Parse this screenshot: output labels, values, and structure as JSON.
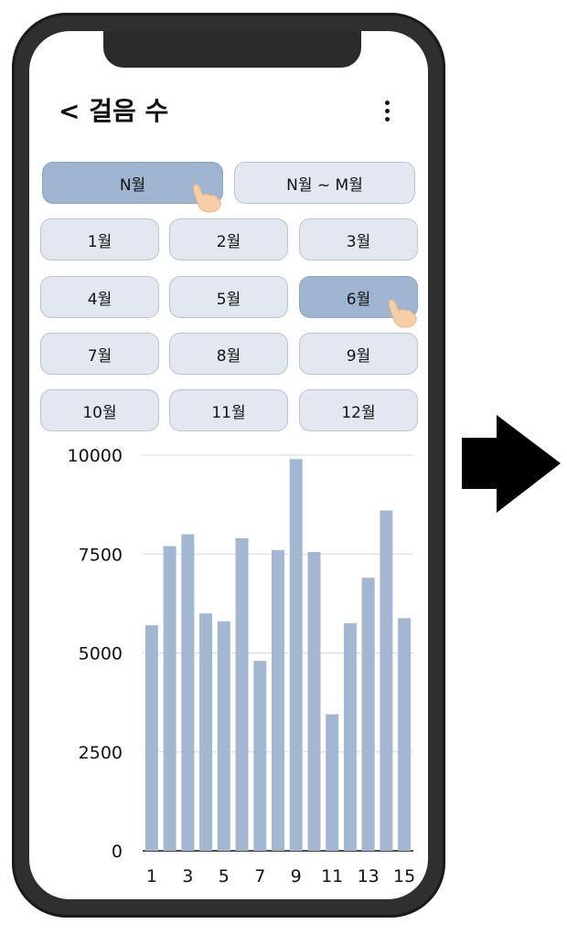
{
  "header": {
    "back_title": "< 걸음 수",
    "menu_icon": "more-vertical-icon"
  },
  "mode_tabs": [
    {
      "label": "N월",
      "selected": true
    },
    {
      "label": "N월 ~ M월",
      "selected": false
    }
  ],
  "months": [
    {
      "label": "1월",
      "selected": false
    },
    {
      "label": "2월",
      "selected": false
    },
    {
      "label": "3월",
      "selected": false
    },
    {
      "label": "4월",
      "selected": false
    },
    {
      "label": "5월",
      "selected": false
    },
    {
      "label": "6월",
      "selected": true
    },
    {
      "label": "7월",
      "selected": false
    },
    {
      "label": "8월",
      "selected": false
    },
    {
      "label": "9월",
      "selected": false
    },
    {
      "label": "10월",
      "selected": false
    },
    {
      "label": "11월",
      "selected": false
    },
    {
      "label": "12월",
      "selected": false
    }
  ],
  "colors": {
    "bar": "#a3b7d2",
    "selected_button": "#9fb4d0",
    "button": "#e3e8f0",
    "phone_frame": "#2f2f2f"
  },
  "chart_data": {
    "type": "bar",
    "x": [
      1,
      2,
      3,
      4,
      5,
      6,
      7,
      8,
      9,
      10,
      11,
      12,
      13,
      14,
      15
    ],
    "values": [
      5700,
      7700,
      8000,
      6000,
      5800,
      7900,
      4800,
      7600,
      9900,
      7550,
      3450,
      5750,
      6900,
      8600,
      5880
    ],
    "x_tick_labels": [
      "1",
      "3",
      "5",
      "7",
      "9",
      "11",
      "13",
      "15"
    ],
    "y_ticks": [
      0,
      2500,
      5000,
      7500,
      10000
    ],
    "y_tick_labels": [
      "0",
      "2500",
      "5000",
      "7500",
      "10000"
    ],
    "ylim": [
      0,
      10000
    ],
    "grid": true
  }
}
